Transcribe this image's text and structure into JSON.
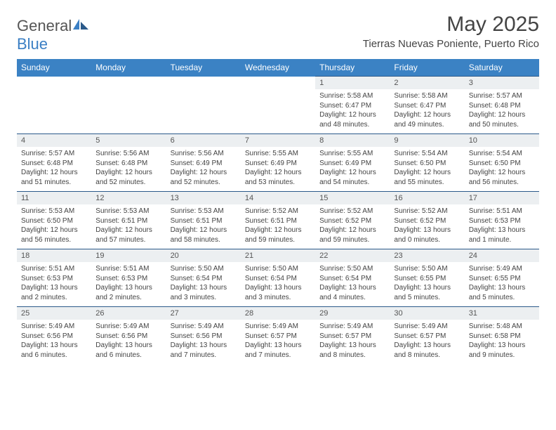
{
  "logo": {
    "word1": "General",
    "word2": "Blue"
  },
  "title": "May 2025",
  "subtitle": "Tierras Nuevas Poniente, Puerto Rico",
  "colors": {
    "header_bg": "#3b82c4",
    "header_text": "#ffffff",
    "daynum_bg": "#eceff1",
    "border": "#2b5a8a",
    "logo_gray": "#555555",
    "logo_blue": "#3b7fc4"
  },
  "day_headers": [
    "Sunday",
    "Monday",
    "Tuesday",
    "Wednesday",
    "Thursday",
    "Friday",
    "Saturday"
  ],
  "weeks": [
    [
      null,
      null,
      null,
      null,
      {
        "n": "1",
        "sr": "5:58 AM",
        "ss": "6:47 PM",
        "dl": "12 hours and 48 minutes."
      },
      {
        "n": "2",
        "sr": "5:58 AM",
        "ss": "6:47 PM",
        "dl": "12 hours and 49 minutes."
      },
      {
        "n": "3",
        "sr": "5:57 AM",
        "ss": "6:48 PM",
        "dl": "12 hours and 50 minutes."
      }
    ],
    [
      {
        "n": "4",
        "sr": "5:57 AM",
        "ss": "6:48 PM",
        "dl": "12 hours and 51 minutes."
      },
      {
        "n": "5",
        "sr": "5:56 AM",
        "ss": "6:48 PM",
        "dl": "12 hours and 52 minutes."
      },
      {
        "n": "6",
        "sr": "5:56 AM",
        "ss": "6:49 PM",
        "dl": "12 hours and 52 minutes."
      },
      {
        "n": "7",
        "sr": "5:55 AM",
        "ss": "6:49 PM",
        "dl": "12 hours and 53 minutes."
      },
      {
        "n": "8",
        "sr": "5:55 AM",
        "ss": "6:49 PM",
        "dl": "12 hours and 54 minutes."
      },
      {
        "n": "9",
        "sr": "5:54 AM",
        "ss": "6:50 PM",
        "dl": "12 hours and 55 minutes."
      },
      {
        "n": "10",
        "sr": "5:54 AM",
        "ss": "6:50 PM",
        "dl": "12 hours and 56 minutes."
      }
    ],
    [
      {
        "n": "11",
        "sr": "5:53 AM",
        "ss": "6:50 PM",
        "dl": "12 hours and 56 minutes."
      },
      {
        "n": "12",
        "sr": "5:53 AM",
        "ss": "6:51 PM",
        "dl": "12 hours and 57 minutes."
      },
      {
        "n": "13",
        "sr": "5:53 AM",
        "ss": "6:51 PM",
        "dl": "12 hours and 58 minutes."
      },
      {
        "n": "14",
        "sr": "5:52 AM",
        "ss": "6:51 PM",
        "dl": "12 hours and 59 minutes."
      },
      {
        "n": "15",
        "sr": "5:52 AM",
        "ss": "6:52 PM",
        "dl": "12 hours and 59 minutes."
      },
      {
        "n": "16",
        "sr": "5:52 AM",
        "ss": "6:52 PM",
        "dl": "13 hours and 0 minutes."
      },
      {
        "n": "17",
        "sr": "5:51 AM",
        "ss": "6:53 PM",
        "dl": "13 hours and 1 minute."
      }
    ],
    [
      {
        "n": "18",
        "sr": "5:51 AM",
        "ss": "6:53 PM",
        "dl": "13 hours and 2 minutes."
      },
      {
        "n": "19",
        "sr": "5:51 AM",
        "ss": "6:53 PM",
        "dl": "13 hours and 2 minutes."
      },
      {
        "n": "20",
        "sr": "5:50 AM",
        "ss": "6:54 PM",
        "dl": "13 hours and 3 minutes."
      },
      {
        "n": "21",
        "sr": "5:50 AM",
        "ss": "6:54 PM",
        "dl": "13 hours and 3 minutes."
      },
      {
        "n": "22",
        "sr": "5:50 AM",
        "ss": "6:54 PM",
        "dl": "13 hours and 4 minutes."
      },
      {
        "n": "23",
        "sr": "5:50 AM",
        "ss": "6:55 PM",
        "dl": "13 hours and 5 minutes."
      },
      {
        "n": "24",
        "sr": "5:49 AM",
        "ss": "6:55 PM",
        "dl": "13 hours and 5 minutes."
      }
    ],
    [
      {
        "n": "25",
        "sr": "5:49 AM",
        "ss": "6:56 PM",
        "dl": "13 hours and 6 minutes."
      },
      {
        "n": "26",
        "sr": "5:49 AM",
        "ss": "6:56 PM",
        "dl": "13 hours and 6 minutes."
      },
      {
        "n": "27",
        "sr": "5:49 AM",
        "ss": "6:56 PM",
        "dl": "13 hours and 7 minutes."
      },
      {
        "n": "28",
        "sr": "5:49 AM",
        "ss": "6:57 PM",
        "dl": "13 hours and 7 minutes."
      },
      {
        "n": "29",
        "sr": "5:49 AM",
        "ss": "6:57 PM",
        "dl": "13 hours and 8 minutes."
      },
      {
        "n": "30",
        "sr": "5:49 AM",
        "ss": "6:57 PM",
        "dl": "13 hours and 8 minutes."
      },
      {
        "n": "31",
        "sr": "5:48 AM",
        "ss": "6:58 PM",
        "dl": "13 hours and 9 minutes."
      }
    ]
  ],
  "labels": {
    "sunrise": "Sunrise:",
    "sunset": "Sunset:",
    "daylight": "Daylight:"
  }
}
